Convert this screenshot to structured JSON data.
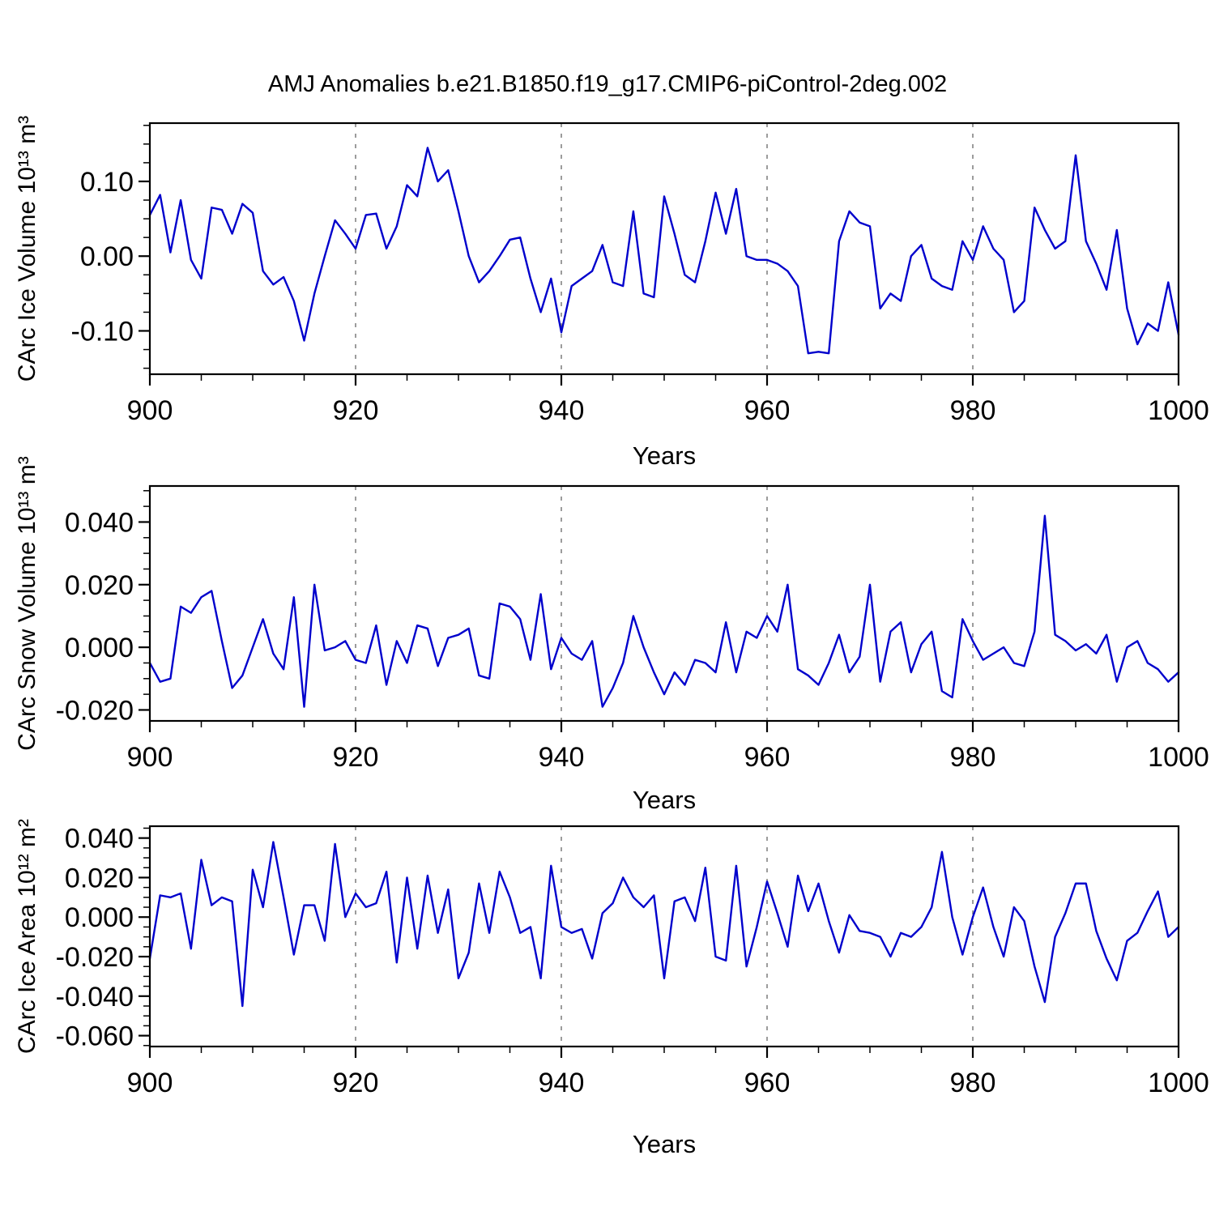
{
  "title": "AMJ Anomalies b.e21.B1850.f19_g17.CMIP6-piControl-2deg.002",
  "colors": {
    "line": "#0000cc",
    "axis": "#000000",
    "grid": "#666666"
  },
  "chart_data": [
    {
      "type": "line",
      "ylabel": "CArc Ice Volume 10¹³ m³",
      "xlabel": "Years",
      "x_start": 900,
      "x_end": 1000,
      "xticks": [
        900,
        920,
        940,
        960,
        980,
        1000
      ],
      "xtick_labels": [
        "900",
        "920",
        "940",
        "960",
        "980",
        "1000"
      ],
      "minor_x_step": 5,
      "gridlines_x": [
        920,
        940,
        960,
        980
      ],
      "yticks": [
        0.1,
        0.0,
        -0.1
      ],
      "ytick_labels": [
        "0.10",
        "0.00",
        "-0.10"
      ],
      "minor_y_step": 0.025,
      "ylim": [
        -0.158,
        0.178
      ],
      "grid": true,
      "legend": "none",
      "values": [
        0.055,
        0.082,
        0.005,
        0.075,
        -0.005,
        -0.03,
        0.065,
        0.062,
        0.03,
        0.07,
        0.058,
        -0.02,
        -0.038,
        -0.028,
        -0.06,
        -0.113,
        -0.05,
        0.0,
        0.048,
        0.03,
        0.01,
        0.055,
        0.057,
        0.01,
        0.04,
        0.095,
        0.08,
        0.145,
        0.1,
        0.115,
        0.06,
        0.0,
        -0.035,
        -0.02,
        0.0,
        0.022,
        0.025,
        -0.03,
        -0.075,
        -0.03,
        -0.102,
        -0.04,
        -0.03,
        -0.02,
        0.015,
        -0.035,
        -0.04,
        0.06,
        -0.05,
        -0.055,
        0.08,
        0.03,
        -0.025,
        -0.035,
        0.02,
        0.085,
        0.03,
        0.09,
        0.0,
        -0.005,
        -0.005,
        -0.01,
        -0.02,
        -0.04,
        -0.13,
        -0.128,
        -0.13,
        0.02,
        0.06,
        0.045,
        0.04,
        -0.07,
        -0.05,
        -0.06,
        0.0,
        0.015,
        -0.03,
        -0.04,
        -0.045,
        0.02,
        -0.005,
        0.04,
        0.01,
        -0.005,
        -0.075,
        -0.06,
        0.065,
        0.035,
        0.01,
        0.02,
        0.135,
        0.02,
        -0.01,
        -0.045,
        0.035,
        -0.07,
        -0.118,
        -0.09,
        -0.1,
        -0.035,
        -0.105
      ]
    },
    {
      "type": "line",
      "ylabel": "CArc Snow Volume 10¹³ m³",
      "xlabel": "Years",
      "x_start": 900,
      "x_end": 1000,
      "xticks": [
        900,
        920,
        940,
        960,
        980,
        1000
      ],
      "xtick_labels": [
        "900",
        "920",
        "940",
        "960",
        "980",
        "1000"
      ],
      "minor_x_step": 5,
      "gridlines_x": [
        920,
        940,
        960,
        980
      ],
      "yticks": [
        0.04,
        0.02,
        0.0,
        -0.02
      ],
      "ytick_labels": [
        "0.040",
        "0.020",
        "0.000",
        "-0.020"
      ],
      "minor_y_step": 0.005,
      "ylim": [
        -0.0235,
        0.0515
      ],
      "grid": true,
      "legend": "none",
      "values": [
        -0.005,
        -0.011,
        -0.01,
        0.013,
        0.011,
        0.016,
        0.018,
        0.002,
        -0.013,
        -0.009,
        0.0,
        0.009,
        -0.002,
        -0.007,
        0.016,
        -0.019,
        0.02,
        -0.001,
        0.0,
        0.002,
        -0.004,
        -0.005,
        0.007,
        -0.012,
        0.002,
        -0.005,
        0.007,
        0.006,
        -0.006,
        0.003,
        0.004,
        0.006,
        -0.009,
        -0.01,
        0.014,
        0.013,
        0.009,
        -0.004,
        0.017,
        -0.007,
        0.003,
        -0.002,
        -0.004,
        0.002,
        -0.019,
        -0.013,
        -0.005,
        0.01,
        0.0,
        -0.008,
        -0.015,
        -0.008,
        -0.012,
        -0.004,
        -0.005,
        -0.008,
        0.008,
        -0.008,
        0.005,
        0.003,
        0.01,
        0.005,
        0.02,
        -0.007,
        -0.009,
        -0.012,
        -0.005,
        0.004,
        -0.008,
        -0.003,
        0.02,
        -0.011,
        0.005,
        0.008,
        -0.008,
        0.001,
        0.005,
        -0.014,
        -0.016,
        0.009,
        0.002,
        -0.004,
        -0.002,
        0.0,
        -0.005,
        -0.006,
        0.005,
        0.042,
        0.004,
        0.002,
        -0.001,
        0.001,
        -0.002,
        0.004,
        -0.011,
        0.0,
        0.002,
        -0.005,
        -0.007,
        -0.011,
        -0.008
      ]
    },
    {
      "type": "line",
      "ylabel": "CArc Ice Area 10¹² m²",
      "xlabel": "Years",
      "x_start": 900,
      "x_end": 1000,
      "xticks": [
        900,
        920,
        940,
        960,
        980,
        1000
      ],
      "xtick_labels": [
        "900",
        "920",
        "940",
        "960",
        "980",
        "1000"
      ],
      "minor_x_step": 5,
      "gridlines_x": [
        920,
        940,
        960,
        980
      ],
      "yticks": [
        0.04,
        0.02,
        0.0,
        -0.02,
        -0.04,
        -0.06
      ],
      "ytick_labels": [
        "0.040",
        "0.020",
        "0.000",
        "-0.020",
        "-0.040",
        "-0.060"
      ],
      "minor_y_step": 0.005,
      "ylim": [
        -0.0655,
        0.046
      ],
      "grid": true,
      "legend": "none",
      "values": [
        -0.021,
        0.011,
        0.01,
        0.012,
        -0.016,
        0.029,
        0.006,
        0.01,
        0.008,
        -0.045,
        0.024,
        0.005,
        0.038,
        0.01,
        -0.019,
        0.006,
        0.006,
        -0.012,
        0.037,
        0.0,
        0.012,
        0.005,
        0.007,
        0.023,
        -0.023,
        0.02,
        -0.016,
        0.021,
        -0.008,
        0.014,
        -0.031,
        -0.018,
        0.017,
        -0.008,
        0.023,
        0.01,
        -0.008,
        -0.005,
        -0.031,
        0.026,
        -0.005,
        -0.008,
        -0.006,
        -0.021,
        0.002,
        0.007,
        0.02,
        0.01,
        0.005,
        0.011,
        -0.031,
        0.008,
        0.01,
        -0.002,
        0.025,
        -0.02,
        -0.022,
        0.026,
        -0.025,
        -0.005,
        0.018,
        0.002,
        -0.015,
        0.021,
        0.003,
        0.017,
        -0.002,
        -0.018,
        0.001,
        -0.007,
        -0.008,
        -0.01,
        -0.02,
        -0.008,
        -0.01,
        -0.005,
        0.005,
        0.033,
        0.0,
        -0.019,
        0.0,
        0.015,
        -0.005,
        -0.02,
        0.005,
        -0.002,
        -0.025,
        -0.043,
        -0.01,
        0.002,
        0.017,
        0.017,
        -0.007,
        -0.021,
        -0.032,
        -0.012,
        -0.008,
        0.003,
        0.013,
        -0.01,
        -0.005
      ]
    }
  ]
}
